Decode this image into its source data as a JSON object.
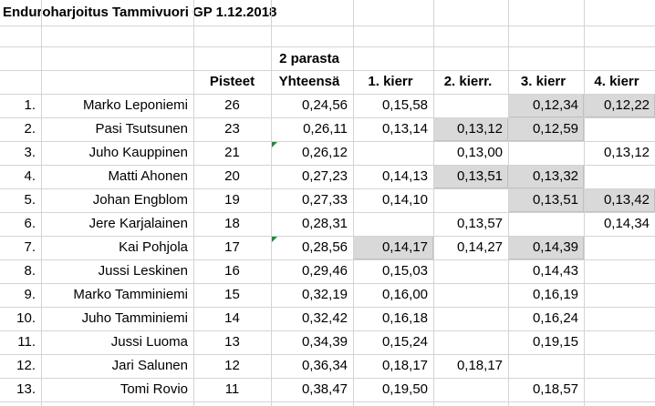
{
  "title": "Enduroharjoitus Tammivuori GP 1.12.2018",
  "header": {
    "top": {
      "yhteensa": "2 parasta"
    },
    "bottom": {
      "pisteet": "Pisteet",
      "yhteensa": "Yhteensä",
      "k1": "1. kierr",
      "k2": "2. kierr.",
      "k3": "3. kierr",
      "k4": "4. kierr"
    }
  },
  "highlight_color": "#d9d9d9",
  "comment_indicator_color": "#1e8a3c",
  "rows": [
    {
      "rank": "1.",
      "name": "Marko Leponiemi",
      "pisteet": "26",
      "yhteensa": "0,24,56",
      "k1": "0,15,58",
      "k2": "",
      "k3": "0,12,34",
      "k4": "0,12,22",
      "hl": [
        "k3",
        "k4"
      ]
    },
    {
      "rank": "2.",
      "name": "Pasi Tsutsunen",
      "pisteet": "23",
      "yhteensa": "0,26,11",
      "k1": "0,13,14",
      "k2": "0,13,12",
      "k3": "0,12,59",
      "k4": "",
      "hl": [
        "k2",
        "k3"
      ]
    },
    {
      "rank": "3.",
      "name": "Juho Kauppinen",
      "pisteet": "21",
      "yhteensa": "0,26,12",
      "k1": "",
      "k2": "0,13,00",
      "k3": "",
      "k4": "0,13,12",
      "hl": [],
      "comment": true
    },
    {
      "rank": "4.",
      "name": "Matti Ahonen",
      "pisteet": "20",
      "yhteensa": "0,27,23",
      "k1": "0,14,13",
      "k2": "0,13,51",
      "k3": "0,13,32",
      "k4": "",
      "hl": [
        "k2",
        "k3"
      ]
    },
    {
      "rank": "5.",
      "name": "Johan Engblom",
      "pisteet": "19",
      "yhteensa": "0,27,33",
      "k1": "0,14,10",
      "k2": "",
      "k3": "0,13,51",
      "k4": "0,13,42",
      "hl": [
        "k3",
        "k4"
      ]
    },
    {
      "rank": "6.",
      "name": "Jere Karjalainen",
      "pisteet": "18",
      "yhteensa": "0,28,31",
      "k1": "",
      "k2": "0,13,57",
      "k3": "",
      "k4": "0,14,34",
      "hl": []
    },
    {
      "rank": "7.",
      "name": "Kai Pohjola",
      "pisteet": "17",
      "yhteensa": "0,28,56",
      "k1": "0,14,17",
      "k2": "0,14,27",
      "k3": "0,14,39",
      "k4": "",
      "hl": [
        "k1",
        "k3"
      ],
      "comment": true
    },
    {
      "rank": "8.",
      "name": "Jussi Leskinen",
      "pisteet": "16",
      "yhteensa": "0,29,46",
      "k1": "0,15,03",
      "k2": "",
      "k3": "0,14,43",
      "k4": "",
      "hl": []
    },
    {
      "rank": "9.",
      "name": "Marko Tamminiemi",
      "pisteet": "15",
      "yhteensa": "0,32,19",
      "k1": "0,16,00",
      "k2": "",
      "k3": "0,16,19",
      "k4": "",
      "hl": []
    },
    {
      "rank": "10.",
      "name": "Juho Tamminiemi",
      "pisteet": "14",
      "yhteensa": "0,32,42",
      "k1": "0,16,18",
      "k2": "",
      "k3": "0,16,24",
      "k4": "",
      "hl": []
    },
    {
      "rank": "11.",
      "name": "Jussi Luoma",
      "pisteet": "13",
      "yhteensa": "0,34,39",
      "k1": "0,15,24",
      "k2": "",
      "k3": "0,19,15",
      "k4": "",
      "hl": []
    },
    {
      "rank": "12.",
      "name": "Jari Salunen",
      "pisteet": "12",
      "yhteensa": "0,36,34",
      "k1": "0,18,17",
      "k2": "0,18,17",
      "k3": "",
      "k4": "",
      "hl": []
    },
    {
      "rank": "13.",
      "name": "Tomi Rovio",
      "pisteet": "11",
      "yhteensa": "0,38,47",
      "k1": "0,19,50",
      "k2": "",
      "k3": "0,18,57",
      "k4": "",
      "hl": []
    }
  ]
}
